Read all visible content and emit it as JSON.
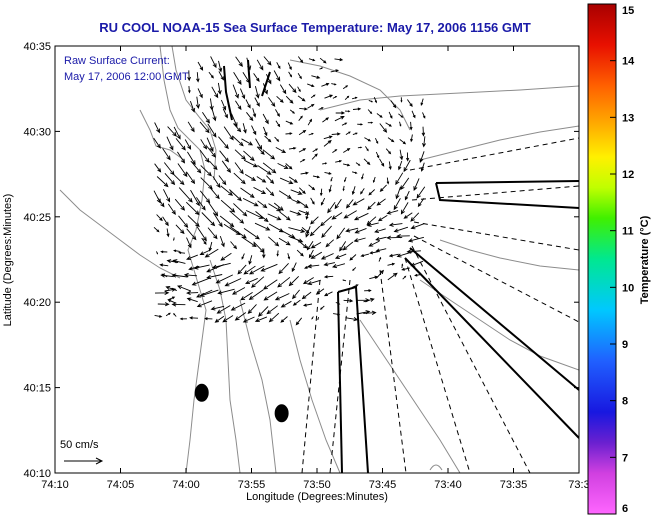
{
  "chart_data": {
    "type": "quiver",
    "title": "RU COOL  NOAA-15  Sea Surface Temperature:  May 17, 2006 1156 GMT",
    "annotation_lines": [
      "Raw Surface Current:",
      "May 17, 2006 12:00 GMT"
    ],
    "xlabel": "Longitude (Degrees:Minutes)",
    "ylabel": "Latitude (Degrees:Minutes)",
    "x_tick_labels": [
      "74:10",
      "74:05",
      "74:00",
      "73:55",
      "73:50",
      "73:45",
      "73:40",
      "73:35",
      "73:3"
    ],
    "y_tick_labels": [
      "40:10",
      "40:15",
      "40:20",
      "40:25",
      "40:30",
      "40:35"
    ],
    "x_ticks_minutes_west": [
      10,
      5,
      0,
      -5,
      -10,
      -15,
      -20,
      -25,
      -30
    ],
    "y_ticks_minutes_north": [
      10,
      15,
      20,
      25,
      30,
      35
    ],
    "xlim": [
      10,
      -30
    ],
    "ylim": [
      10,
      35
    ],
    "scale_label": "50 cm/s",
    "colorbar": {
      "label": "Temperature (°C)",
      "min": 6,
      "max": 15,
      "tick_labels": [
        "6",
        "7",
        "8",
        "9",
        "10",
        "11",
        "12",
        "13",
        "14",
        "15"
      ]
    },
    "markers": [
      {
        "lon_min": -1.2,
        "lat_min": 14.7
      },
      {
        "lon_min": -7.3,
        "lat_min": 13.5
      }
    ],
    "vector_field": {
      "cells": [
        {
          "lon_min": -1.5,
          "lat_min": 33.5,
          "u": 5,
          "v": -15
        },
        {
          "lon_min": -3.5,
          "lat_min": 32.0,
          "u": 10,
          "v": -20
        },
        {
          "lon_min": -5.5,
          "lat_min": 31.0,
          "u": 8,
          "v": -15
        },
        {
          "lon_min": -2.0,
          "lat_min": 29.0,
          "u": 15,
          "v": -20
        },
        {
          "lon_min": -4.5,
          "lat_min": 28.0,
          "u": 20,
          "v": -15
        },
        {
          "lon_min": -7.0,
          "lat_min": 27.0,
          "u": 18,
          "v": -10
        },
        {
          "lon_min": -9.0,
          "lat_min": 29.0,
          "u": 10,
          "v": 8
        },
        {
          "lon_min": -12.0,
          "lat_min": 30.0,
          "u": 12,
          "v": 5
        },
        {
          "lon_min": -15.0,
          "lat_min": 29.0,
          "u": 8,
          "v": -12
        },
        {
          "lon_min": -17.0,
          "lat_min": 27.0,
          "u": -10,
          "v": -18
        },
        {
          "lon_min": -1.0,
          "lat_min": 26.0,
          "u": 20,
          "v": -25
        },
        {
          "lon_min": -4.0,
          "lat_min": 24.5,
          "u": 28,
          "v": -18
        },
        {
          "lon_min": -7.5,
          "lat_min": 24.0,
          "u": 25,
          "v": -10
        },
        {
          "lon_min": -11.0,
          "lat_min": 24.5,
          "u": -15,
          "v": -18
        },
        {
          "lon_min": -14.0,
          "lat_min": 24.5,
          "u": -20,
          "v": -10
        },
        {
          "lon_min": -16.5,
          "lat_min": 24.0,
          "u": -25,
          "v": -5
        },
        {
          "lon_min": -3.0,
          "lat_min": 22.0,
          "u": -30,
          "v": -10
        },
        {
          "lon_min": -7.0,
          "lat_min": 22.0,
          "u": -25,
          "v": -15
        },
        {
          "lon_min": -11.0,
          "lat_min": 22.0,
          "u": -20,
          "v": -5
        },
        {
          "lon_min": 0.5,
          "lat_min": 21.0,
          "u": -25,
          "v": 5
        },
        {
          "lon_min": 2.0,
          "lat_min": 20.5,
          "u": 20,
          "v": 0
        },
        {
          "lon_min": -13.0,
          "lat_min": 19.5,
          "u": 20,
          "v": 0
        },
        {
          "lon_min": -15.0,
          "lat_min": 21.0,
          "u": 15,
          "v": 10
        }
      ]
    },
    "colors": {
      "title": "#1a1aa8",
      "land_contour": "#8c8c8c",
      "vectors": "#000000",
      "outline": "#000000"
    }
  }
}
